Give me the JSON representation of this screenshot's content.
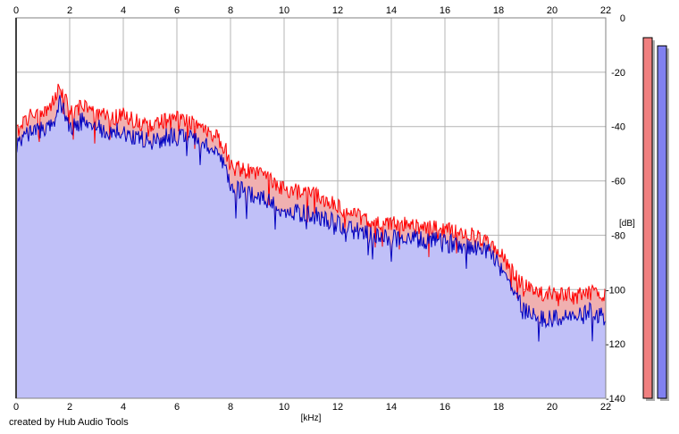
{
  "chart_data": {
    "type": "area",
    "title": "",
    "xlabel": "[kHz]",
    "ylabel": "[dB]",
    "xlim": [
      0,
      22
    ],
    "ylim": [
      -140,
      0
    ],
    "x_ticks": [
      "0",
      "2",
      "4",
      "6",
      "8",
      "10",
      "12",
      "14",
      "16",
      "18",
      "20",
      "22"
    ],
    "y_ticks": [
      "0",
      "-20",
      "-40",
      "-60",
      "-80",
      "-100",
      "-120",
      "-140"
    ],
    "grid": true,
    "series": [
      {
        "color": "#ff0000",
        "fill": "#f0b0b0",
        "x": [
          0,
          0.5,
          1,
          1.5,
          1.6,
          2,
          2.5,
          3,
          3.5,
          4,
          4.5,
          5,
          5.5,
          6,
          6.5,
          7,
          7.5,
          7.8,
          8,
          8.5,
          9,
          9.5,
          10,
          10.5,
          11,
          11.5,
          12,
          12.5,
          13,
          13.5,
          14,
          14.5,
          15,
          15.5,
          16,
          16.5,
          17,
          17.5,
          18,
          18.5,
          19,
          19.5,
          20,
          20.5,
          21,
          21.5,
          22
        ],
        "values": [
          -42,
          -36,
          -35,
          -30,
          -24,
          -34,
          -33,
          -35,
          -37,
          -36,
          -38,
          -40,
          -38,
          -37,
          -38,
          -40,
          -44,
          -48,
          -54,
          -56,
          -57,
          -60,
          -63,
          -64,
          -64,
          -67,
          -69,
          -72,
          -74,
          -76,
          -76,
          -76,
          -77,
          -77,
          -78,
          -79,
          -80,
          -82,
          -86,
          -93,
          -99,
          -101,
          -102,
          -102,
          -102,
          -101,
          -102
        ]
      },
      {
        "color": "#0000c0",
        "fill": "#c0c0f8",
        "x": [
          0,
          0.5,
          1,
          1.5,
          1.6,
          2,
          2.5,
          3,
          3.5,
          4,
          4.5,
          5,
          5.5,
          6,
          6.5,
          7,
          7.5,
          7.8,
          8,
          8.5,
          9,
          9.5,
          10,
          10.5,
          11,
          11.5,
          12,
          12.5,
          13,
          13.5,
          14,
          14.5,
          15,
          15.5,
          16,
          16.5,
          17,
          17.5,
          18,
          18.5,
          19,
          19.5,
          20,
          20.5,
          21,
          21.5,
          22
        ],
        "values": [
          -48,
          -42,
          -41,
          -37,
          -30,
          -40,
          -38,
          -40,
          -42,
          -42,
          -44,
          -46,
          -44,
          -44,
          -44,
          -46,
          -50,
          -56,
          -62,
          -64,
          -65,
          -68,
          -71,
          -72,
          -72,
          -74,
          -76,
          -78,
          -79,
          -81,
          -81,
          -81,
          -82,
          -82,
          -83,
          -83,
          -84,
          -85,
          -89,
          -100,
          -108,
          -110,
          -111,
          -110,
          -110,
          -108,
          -110
        ]
      }
    ],
    "level_meters": [
      {
        "color": "#f08080",
        "value": -4
      },
      {
        "color": "#8080f0",
        "value": -7
      }
    ]
  },
  "footer": {
    "credit": "created by Hub Audio Tools"
  }
}
